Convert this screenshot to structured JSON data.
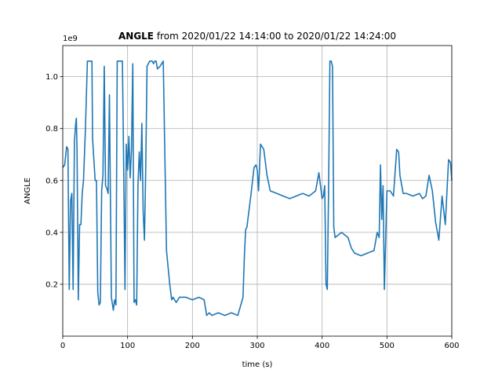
{
  "chart_data": {
    "type": "line",
    "title_bold": "ANGLE",
    "title_rest": " from 2020/01/22 14:14:00 to 2020/01/22 14:24:00",
    "xlabel": "time (s)",
    "ylabel": "ANGLE",
    "y_offset_label": "1e9",
    "xlim": [
      0,
      600
    ],
    "ylim": [
      0.0,
      1.12
    ],
    "x_ticks": [
      0,
      100,
      200,
      300,
      400,
      500,
      600
    ],
    "y_ticks": [
      0.2,
      0.4,
      0.6,
      0.8,
      1.0
    ],
    "y_tick_labels": [
      "0.2",
      "0.4",
      "0.6",
      "0.8",
      "1.0"
    ],
    "grid": true,
    "line_color": "#1f77b4",
    "series": [
      {
        "x": [
          0,
          3,
          6,
          8,
          10,
          12,
          14,
          16,
          18,
          20,
          21,
          22,
          24,
          26,
          28,
          30,
          32,
          35,
          38,
          42,
          45,
          46,
          50,
          52,
          54,
          56,
          58,
          60,
          62,
          64,
          66,
          68,
          70,
          72,
          75,
          78,
          80,
          82,
          84,
          86,
          88,
          90,
          92,
          94,
          96,
          98,
          100,
          102,
          104,
          106,
          108,
          110,
          112,
          114,
          116,
          118,
          120,
          122,
          124,
          126,
          128,
          130,
          132,
          134,
          136,
          138,
          140,
          142,
          144,
          146,
          150,
          155,
          160,
          165,
          168,
          170,
          175,
          180,
          190,
          200,
          210,
          218,
          222,
          226,
          230,
          240,
          250,
          260,
          270,
          278,
          280,
          282,
          284,
          286,
          290,
          295,
          298,
          300,
          302,
          305,
          310,
          315,
          320,
          330,
          340,
          350,
          360,
          370,
          380,
          390,
          395,
          400,
          402,
          404,
          406,
          408,
          410,
          412,
          414,
          416,
          418,
          420,
          425,
          430,
          440,
          445,
          450,
          460,
          470,
          480,
          485,
          488,
          490,
          492,
          494,
          496,
          500,
          505,
          510,
          512,
          515,
          518,
          520,
          525,
          530,
          540,
          550,
          555,
          560,
          565,
          570,
          575,
          580,
          585,
          590,
          595,
          598,
          600
        ],
        "y": [
          0.65,
          0.66,
          0.73,
          0.72,
          0.18,
          0.52,
          0.55,
          0.18,
          0.75,
          0.82,
          0.84,
          0.72,
          0.14,
          0.43,
          0.43,
          0.55,
          0.6,
          0.8,
          1.06,
          1.06,
          1.06,
          0.76,
          0.6,
          0.6,
          0.17,
          0.12,
          0.13,
          0.56,
          0.62,
          1.04,
          0.58,
          0.57,
          0.55,
          0.93,
          0.15,
          0.1,
          0.14,
          0.12,
          1.06,
          1.06,
          1.06,
          1.06,
          1.06,
          0.65,
          0.18,
          0.74,
          0.64,
          0.77,
          0.61,
          0.72,
          1.05,
          0.13,
          0.14,
          0.12,
          0.58,
          0.71,
          0.6,
          0.82,
          0.48,
          0.37,
          0.65,
          1.04,
          1.05,
          1.06,
          1.06,
          1.06,
          1.05,
          1.06,
          1.06,
          1.03,
          1.04,
          1.06,
          0.33,
          0.2,
          0.14,
          0.15,
          0.13,
          0.15,
          0.15,
          0.14,
          0.15,
          0.14,
          0.08,
          0.09,
          0.08,
          0.09,
          0.08,
          0.09,
          0.08,
          0.15,
          0.3,
          0.41,
          0.42,
          0.46,
          0.54,
          0.65,
          0.66,
          0.64,
          0.56,
          0.74,
          0.72,
          0.62,
          0.56,
          0.55,
          0.54,
          0.53,
          0.54,
          0.55,
          0.54,
          0.56,
          0.63,
          0.53,
          0.54,
          0.58,
          0.2,
          0.18,
          0.57,
          1.06,
          1.06,
          1.04,
          0.42,
          0.38,
          0.39,
          0.4,
          0.38,
          0.34,
          0.32,
          0.31,
          0.32,
          0.33,
          0.4,
          0.38,
          0.66,
          0.45,
          0.58,
          0.18,
          0.56,
          0.56,
          0.54,
          0.61,
          0.72,
          0.71,
          0.62,
          0.55,
          0.55,
          0.54,
          0.55,
          0.53,
          0.54,
          0.62,
          0.56,
          0.44,
          0.37,
          0.54,
          0.43,
          0.68,
          0.67,
          0.6
        ]
      }
    ]
  }
}
